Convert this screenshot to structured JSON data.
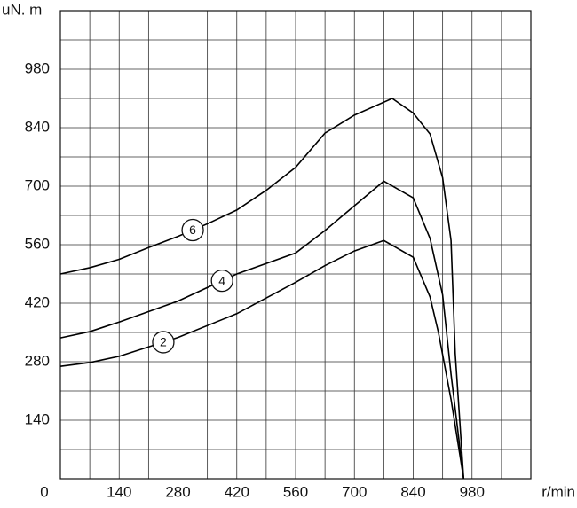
{
  "chart_data": {
    "type": "line",
    "y_label": "uN. m",
    "x_label": "r/min",
    "xlim": [
      0,
      1120
    ],
    "ylim": [
      0,
      1120
    ],
    "xticks": [
      0,
      140,
      280,
      420,
      560,
      700,
      840,
      980
    ],
    "yticks": [
      140,
      280,
      420,
      560,
      700,
      840,
      980
    ],
    "grid": true,
    "xgrid": [
      70,
      140,
      210,
      280,
      350,
      420,
      490,
      560,
      630,
      700,
      770,
      840,
      910,
      980,
      1050
    ],
    "ygrid": [
      70,
      140,
      210,
      280,
      350,
      420,
      490,
      560,
      630,
      700,
      770,
      840,
      910,
      980,
      1050
    ],
    "series": [
      {
        "name": "6",
        "color": "#000000",
        "x": [
          0,
          70,
          140,
          210,
          280,
          350,
          420,
          490,
          560,
          630,
          700,
          790,
          840,
          880,
          910,
          930,
          940,
          960
        ],
        "values": [
          490,
          505,
          525,
          553,
          580,
          610,
          643,
          690,
          745,
          827,
          870,
          910,
          875,
          825,
          720,
          570,
          300,
          0
        ]
      },
      {
        "name": "4",
        "color": "#000000",
        "x": [
          0,
          70,
          140,
          280,
          420,
          560,
          630,
          700,
          770,
          840,
          880,
          910,
          930,
          960
        ],
        "values": [
          337,
          352,
          375,
          425,
          490,
          540,
          594,
          653,
          712,
          672,
          575,
          440,
          250,
          0
        ]
      },
      {
        "name": "2",
        "color": "#000000",
        "x": [
          0,
          70,
          140,
          280,
          420,
          560,
          630,
          700,
          770,
          840,
          880,
          900,
          930,
          960
        ],
        "values": [
          269,
          278,
          293,
          338,
          395,
          470,
          510,
          545,
          570,
          530,
          435,
          350,
          190,
          0
        ]
      }
    ]
  }
}
